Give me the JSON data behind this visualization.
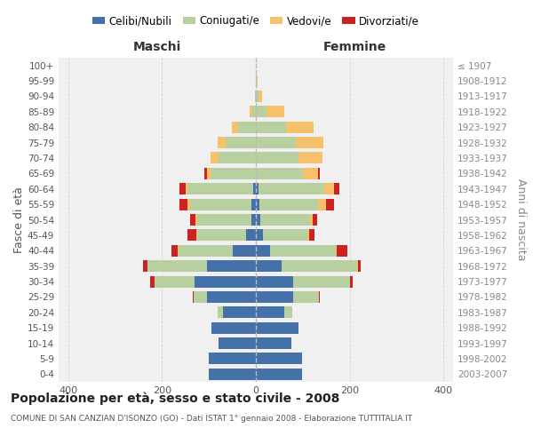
{
  "age_groups": [
    "100+",
    "95-99",
    "90-94",
    "85-89",
    "80-84",
    "75-79",
    "70-74",
    "65-69",
    "60-64",
    "55-59",
    "50-54",
    "45-49",
    "40-44",
    "35-39",
    "30-34",
    "25-29",
    "20-24",
    "15-19",
    "10-14",
    "5-9",
    "0-4"
  ],
  "birth_years": [
    "≤ 1907",
    "1908-1912",
    "1913-1917",
    "1918-1922",
    "1923-1927",
    "1928-1932",
    "1933-1937",
    "1938-1942",
    "1943-1947",
    "1948-1952",
    "1953-1957",
    "1958-1962",
    "1963-1967",
    "1968-1972",
    "1973-1977",
    "1978-1982",
    "1983-1987",
    "1988-1992",
    "1993-1997",
    "1998-2002",
    "2003-2007"
  ],
  "males_celibi": [
    0,
    0,
    0,
    0,
    0,
    0,
    0,
    0,
    5,
    10,
    10,
    20,
    50,
    105,
    130,
    105,
    70,
    95,
    80,
    100,
    100
  ],
  "males_coniugati": [
    0,
    0,
    2,
    8,
    38,
    65,
    80,
    95,
    140,
    130,
    115,
    105,
    115,
    125,
    85,
    28,
    12,
    0,
    0,
    0,
    0
  ],
  "males_vedovi": [
    0,
    0,
    0,
    5,
    13,
    16,
    16,
    10,
    5,
    5,
    3,
    2,
    2,
    0,
    0,
    0,
    0,
    0,
    0,
    0,
    0
  ],
  "males_divorziati": [
    0,
    0,
    0,
    0,
    0,
    0,
    0,
    5,
    12,
    17,
    12,
    18,
    12,
    10,
    10,
    2,
    0,
    0,
    0,
    0,
    0
  ],
  "females_nubili": [
    0,
    0,
    0,
    0,
    0,
    0,
    0,
    0,
    5,
    8,
    10,
    15,
    30,
    55,
    80,
    80,
    60,
    90,
    75,
    98,
    98
  ],
  "females_coniugate": [
    0,
    2,
    5,
    22,
    65,
    85,
    90,
    100,
    140,
    125,
    105,
    95,
    140,
    160,
    120,
    55,
    18,
    0,
    0,
    0,
    0
  ],
  "females_vedove": [
    0,
    2,
    8,
    38,
    58,
    58,
    52,
    32,
    22,
    16,
    6,
    3,
    2,
    2,
    0,
    0,
    0,
    0,
    0,
    0,
    0
  ],
  "females_divorziate": [
    0,
    0,
    0,
    0,
    0,
    0,
    0,
    5,
    10,
    17,
    10,
    12,
    22,
    6,
    6,
    2,
    0,
    0,
    0,
    0,
    0
  ],
  "color_celibi": "#4472a8",
  "color_coniugati": "#b8cfa0",
  "color_vedovi": "#f5c26b",
  "color_divorziati": "#cc2222",
  "bg_color": "#f0f0f0",
  "grid_color": "#cccccc",
  "title": "Popolazione per età, sesso e stato civile - 2008",
  "subtitle": "COMUNE DI SAN CANZIAN D'ISONZO (GO) - Dati ISTAT 1° gennaio 2008 - Elaborazione TUTTITALIA.IT",
  "xlabel_left": "Maschi",
  "xlabel_right": "Femmine",
  "ylabel_left": "Fasce di età",
  "ylabel_right": "Anni di nascita",
  "xlim": 420
}
